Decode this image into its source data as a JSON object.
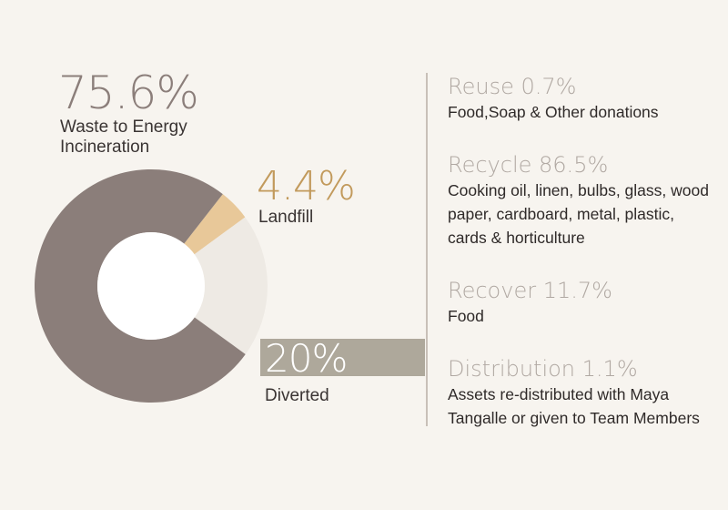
{
  "chart_data": {
    "type": "pie",
    "variant": "donut",
    "slices": [
      {
        "label": "Waste to Energy Incineration",
        "value_label": "75.6%",
        "value": 75.6,
        "color": "#8b7e7a"
      },
      {
        "label": "Landfill",
        "value_label": "4.4%",
        "value": 4.4,
        "color": "#e8c899"
      },
      {
        "label": "Diverted",
        "value_label": "20%",
        "value": 20,
        "color": "#eeeae4"
      }
    ]
  },
  "diverted_breakdown": [
    {
      "title": "Reuse 0.7%",
      "description": "Food,Soap & Other donations"
    },
    {
      "title": "Recycle 86.5%",
      "description": "Cooking oil, linen, bulbs, glass, wood paper, cardboard, metal, plastic, cards & horticulture"
    },
    {
      "title": "Recover 11.7%",
      "description": "Food"
    },
    {
      "title": "Distribution 1.1%",
      "description": "Assets re-distributed with Maya Tangalle or given to Team Members"
    }
  ],
  "colors": {
    "background": "#f7f4ef",
    "diverted_bar": "#aea89b",
    "divider": "#c8c0b8"
  }
}
